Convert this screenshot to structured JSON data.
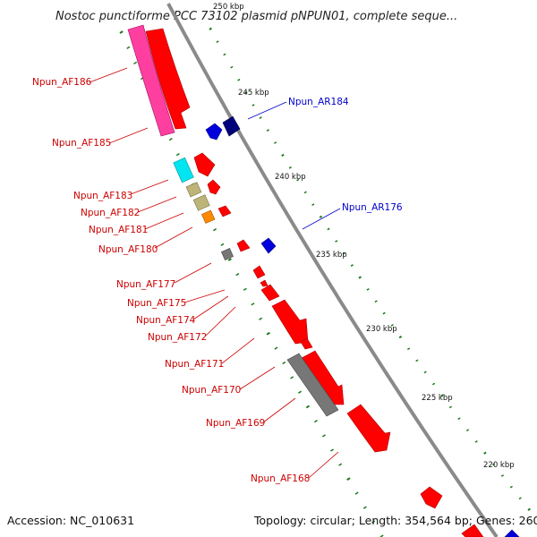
{
  "title": "Nostoc punctiforme PCC 73102 plasmid pNPUN01, complete seque...",
  "footer": {
    "accession": "Accession: NC_010631",
    "summary": "Topology: circular; Length: 354,564 bp; Genes: 260"
  },
  "colors": {
    "backbone": "#8a8a8a",
    "tick": "#1a7a1a",
    "forward_gene": "#ff0000",
    "reverse_gene": "#0000dd",
    "label_forward": "#cc0000",
    "label_reverse": "#0000cc",
    "pseudo": "#777777",
    "pink": "#ff3fa0",
    "cyan": "#00e5f0",
    "tan": "#bdb47a",
    "orange": "#ff8a00",
    "navy": "#00007a"
  },
  "ticks": [
    "250 kbp",
    "245 kbp",
    "240 kbp",
    "235 kbp",
    "230 kbp",
    "225 kbp",
    "220 kbp"
  ],
  "labels": [
    {
      "text": "Npun_AF186",
      "strand": "forward"
    },
    {
      "text": "Npun_AR184",
      "strand": "reverse"
    },
    {
      "text": "Npun_AF185",
      "strand": "forward"
    },
    {
      "text": "Npun_AF183",
      "strand": "forward"
    },
    {
      "text": "Npun_AF182",
      "strand": "forward"
    },
    {
      "text": "Npun_AR176",
      "strand": "reverse"
    },
    {
      "text": "Npun_AF181",
      "strand": "forward"
    },
    {
      "text": "Npun_AF180",
      "strand": "forward"
    },
    {
      "text": "Npun_AF177",
      "strand": "forward"
    },
    {
      "text": "Npun_AF175",
      "strand": "forward"
    },
    {
      "text": "Npun_AF174",
      "strand": "forward"
    },
    {
      "text": "Npun_AF172",
      "strand": "forward"
    },
    {
      "text": "Npun_AF171",
      "strand": "forward"
    },
    {
      "text": "Npun_AF170",
      "strand": "forward"
    },
    {
      "text": "Npun_AF169",
      "strand": "forward"
    },
    {
      "text": "Npun_AF168",
      "strand": "forward"
    }
  ]
}
